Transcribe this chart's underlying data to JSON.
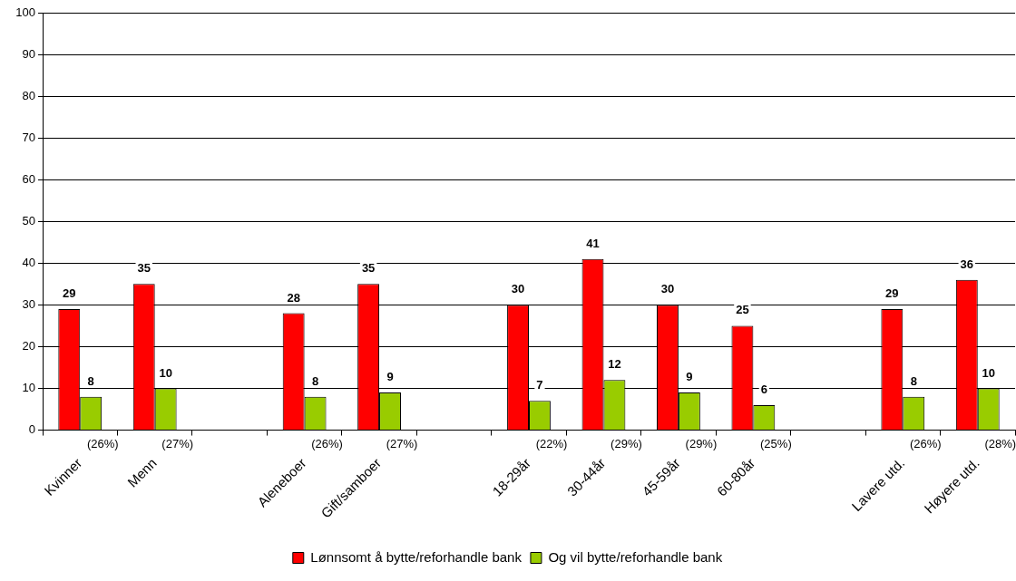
{
  "chart_data": {
    "type": "bar",
    "categories": [
      "Kvinner",
      "Menn",
      null,
      "Aleneboer",
      "Gift/samboer",
      null,
      "18-29år",
      "30-44år",
      "45-59år",
      "60-80år",
      null,
      "Lavere utd.",
      "Høyere utd."
    ],
    "series": [
      {
        "name": "Lønnsomt å bytte/reforhandle bank",
        "color": "#ff0000",
        "values": [
          29,
          35,
          null,
          28,
          35,
          null,
          30,
          41,
          30,
          25,
          null,
          29,
          36
        ]
      },
      {
        "name": "Og vil bytte/reforhandle bank",
        "color": "#99cc00",
        "values": [
          8,
          10,
          null,
          8,
          9,
          null,
          7,
          12,
          9,
          6,
          null,
          8,
          10
        ]
      }
    ],
    "ylim": [
      0,
      100
    ],
    "yticks": [
      0,
      10,
      20,
      30,
      40,
      50,
      60,
      70,
      80,
      90,
      100
    ],
    "grid": "y",
    "legend": "bottom",
    "data_labels": true,
    "annotations": [
      "(26%)",
      "(27%)",
      "(26%)",
      "(27%)",
      "(22%)",
      "(29%)",
      "(29%)",
      "(25%)",
      "(26%)",
      "(28%)"
    ]
  }
}
